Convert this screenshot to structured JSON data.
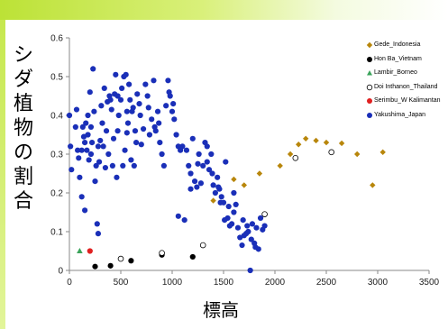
{
  "chart_data": {
    "type": "scatter",
    "ylabel": "シダ植物の割合",
    "xlabel": "標高",
    "xlim": [
      0,
      3500
    ],
    "ylim": [
      0,
      0.6
    ],
    "xticks": [
      0,
      500,
      1000,
      1500,
      2000,
      2500,
      3000,
      3500
    ],
    "yticks": [
      0,
      0.1,
      0.2,
      0.3,
      0.4,
      0.5,
      0.6
    ],
    "x_tick_labels": [
      "0",
      "500",
      "1000",
      "1500",
      "2000",
      "2500",
      "3000",
      "3500"
    ],
    "y_tick_labels": [
      "0",
      "0.1",
      "0.2",
      "0.3",
      "0.4",
      "0.5",
      "0.6"
    ],
    "grid": false,
    "legend_position": "right",
    "series": [
      {
        "name": "Gede_Indonesia",
        "marker": "diamond",
        "color": "#b8860b",
        "points": [
          [
            1400,
            0.18
          ],
          [
            1600,
            0.235
          ],
          [
            1700,
            0.22
          ],
          [
            1850,
            0.25
          ],
          [
            2050,
            0.27
          ],
          [
            2150,
            0.3
          ],
          [
            2230,
            0.325
          ],
          [
            2300,
            0.34
          ],
          [
            2400,
            0.335
          ],
          [
            2500,
            0.33
          ],
          [
            2650,
            0.328
          ],
          [
            2800,
            0.3
          ],
          [
            2950,
            0.22
          ],
          [
            3050,
            0.305
          ]
        ]
      },
      {
        "name": "Hon Ba_Vietnam",
        "marker": "circle",
        "color": "#000000",
        "points": [
          [
            250,
            0.01
          ],
          [
            400,
            0.012
          ],
          [
            600,
            0.025
          ],
          [
            900,
            0.04
          ],
          [
            1200,
            0.035
          ]
        ]
      },
      {
        "name": "Lambir_Borneo",
        "marker": "triangle",
        "color": "#3aa35a",
        "points": [
          [
            100,
            0.05
          ]
        ]
      },
      {
        "name": "Doi Inthanon_Thailand",
        "marker": "open-circle",
        "color": "#000000",
        "points": [
          [
            500,
            0.03
          ],
          [
            900,
            0.045
          ],
          [
            1300,
            0.065
          ],
          [
            1900,
            0.145
          ],
          [
            2200,
            0.29
          ],
          [
            2550,
            0.305
          ]
        ]
      },
      {
        "name": "Serimbu_W Kalimantan",
        "marker": "circle",
        "color": "#e02020",
        "points": [
          [
            200,
            0.05
          ]
        ]
      },
      {
        "name": "Yakushima_Japan",
        "marker": "circle",
        "color": "#1a2fb8",
        "points": [
          [
            0,
            0.4
          ],
          [
            10,
            0.32
          ],
          [
            20,
            0.26
          ],
          [
            60,
            0.37
          ],
          [
            70,
            0.415
          ],
          [
            90,
            0.29
          ],
          [
            100,
            0.24
          ],
          [
            120,
            0.19
          ],
          [
            130,
            0.37
          ],
          [
            140,
            0.345
          ],
          [
            150,
            0.155
          ],
          [
            160,
            0.38
          ],
          [
            170,
            0.31
          ],
          [
            180,
            0.4
          ],
          [
            190,
            0.285
          ],
          [
            200,
            0.46
          ],
          [
            210,
            0.37
          ],
          [
            220,
            0.33
          ],
          [
            230,
            0.52
          ],
          [
            240,
            0.41
          ],
          [
            250,
            0.23
          ],
          [
            260,
            0.27
          ],
          [
            270,
            0.12
          ],
          [
            280,
            0.095
          ],
          [
            290,
            0.28
          ],
          [
            300,
            0.335
          ],
          [
            310,
            0.425
          ],
          [
            320,
            0.38
          ],
          [
            330,
            0.32
          ],
          [
            340,
            0.47
          ],
          [
            350,
            0.265
          ],
          [
            370,
            0.435
          ],
          [
            380,
            0.3
          ],
          [
            390,
            0.45
          ],
          [
            400,
            0.44
          ],
          [
            410,
            0.415
          ],
          [
            420,
            0.27
          ],
          [
            430,
            0.34
          ],
          [
            440,
            0.455
          ],
          [
            450,
            0.505
          ],
          [
            460,
            0.24
          ],
          [
            470,
            0.36
          ],
          [
            480,
            0.4
          ],
          [
            500,
            0.44
          ],
          [
            510,
            0.47
          ],
          [
            520,
            0.27
          ],
          [
            530,
            0.5
          ],
          [
            540,
            0.31
          ],
          [
            550,
            0.505
          ],
          [
            560,
            0.355
          ],
          [
            570,
            0.38
          ],
          [
            580,
            0.48
          ],
          [
            590,
            0.44
          ],
          [
            600,
            0.285
          ],
          [
            610,
            0.41
          ],
          [
            620,
            0.42
          ],
          [
            630,
            0.27
          ],
          [
            640,
            0.36
          ],
          [
            660,
            0.455
          ],
          [
            680,
            0.43
          ],
          [
            700,
            0.325
          ],
          [
            720,
            0.365
          ],
          [
            740,
            0.48
          ],
          [
            760,
            0.45
          ],
          [
            780,
            0.35
          ],
          [
            800,
            0.39
          ],
          [
            820,
            0.49
          ],
          [
            840,
            0.36
          ],
          [
            860,
            0.41
          ],
          [
            880,
            0.33
          ],
          [
            900,
            0.3
          ],
          [
            920,
            0.27
          ],
          [
            940,
            0.425
          ],
          [
            960,
            0.49
          ],
          [
            980,
            0.45
          ],
          [
            1000,
            0.41
          ],
          [
            1020,
            0.39
          ],
          [
            1040,
            0.35
          ],
          [
            1060,
            0.32
          ],
          [
            1080,
            0.31
          ],
          [
            1100,
            0.32
          ],
          [
            1120,
            0.13
          ],
          [
            1140,
            0.31
          ],
          [
            1160,
            0.27
          ],
          [
            1180,
            0.25
          ],
          [
            1200,
            0.34
          ],
          [
            1220,
            0.23
          ],
          [
            1240,
            0.215
          ],
          [
            1260,
            0.3
          ],
          [
            1280,
            0.225
          ],
          [
            1300,
            0.27
          ],
          [
            1320,
            0.33
          ],
          [
            1340,
            0.28
          ],
          [
            1360,
            0.26
          ],
          [
            1380,
            0.3
          ],
          [
            1400,
            0.22
          ],
          [
            1420,
            0.2
          ],
          [
            1440,
            0.24
          ],
          [
            1460,
            0.21
          ],
          [
            1480,
            0.19
          ],
          [
            1500,
            0.175
          ],
          [
            1520,
            0.28
          ],
          [
            1540,
            0.135
          ],
          [
            1560,
            0.115
          ],
          [
            1580,
            0.12
          ],
          [
            1600,
            0.15
          ],
          [
            1620,
            0.17
          ],
          [
            1640,
            0.11
          ],
          [
            1660,
            0.085
          ],
          [
            1680,
            0.065
          ],
          [
            1700,
            0.09
          ],
          [
            1720,
            0.095
          ],
          [
            1740,
            0.1
          ],
          [
            1760,
            0.0
          ],
          [
            1780,
            0.12
          ],
          [
            1800,
            0.07
          ],
          [
            1820,
            0.11
          ],
          [
            1840,
            0.055
          ],
          [
            1860,
            0.135
          ],
          [
            1880,
            0.105
          ],
          [
            1900,
            0.115
          ],
          [
            1340,
            0.32
          ],
          [
            1390,
            0.25
          ],
          [
            1450,
            0.215
          ],
          [
            1510,
            0.13
          ],
          [
            1690,
            0.13
          ],
          [
            1730,
            0.115
          ],
          [
            1770,
            0.08
          ],
          [
            1810,
            0.06
          ],
          [
            1600,
            0.2
          ],
          [
            1550,
            0.165
          ],
          [
            1470,
            0.175
          ],
          [
            1250,
            0.275
          ],
          [
            1180,
            0.21
          ],
          [
            1060,
            0.14
          ],
          [
            1010,
            0.43
          ],
          [
            970,
            0.46
          ],
          [
            870,
            0.38
          ],
          [
            830,
            0.37
          ],
          [
            770,
            0.42
          ],
          [
            690,
            0.4
          ],
          [
            650,
            0.33
          ],
          [
            560,
            0.41
          ],
          [
            470,
            0.45
          ],
          [
            360,
            0.36
          ],
          [
            280,
            0.32
          ],
          [
            210,
            0.3
          ],
          [
            180,
            0.35
          ],
          [
            150,
            0.33
          ],
          [
            120,
            0.31
          ],
          [
            80,
            0.31
          ]
        ]
      }
    ]
  }
}
